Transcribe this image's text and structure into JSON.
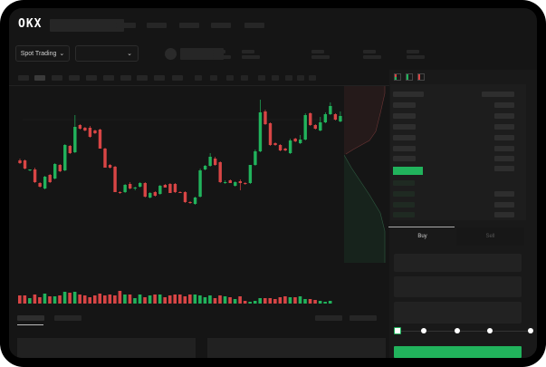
{
  "brand": "OKX",
  "market_selector": {
    "label": "Spot Trading"
  },
  "trade_tabs": [
    {
      "label": "Buy",
      "active": true
    },
    {
      "label": "Sell",
      "active": false
    }
  ],
  "order_slider": {
    "value_percent": 0,
    "stops": [
      0,
      25,
      50,
      75,
      100
    ]
  },
  "colors": {
    "up": "#21b35c",
    "down": "#d84545",
    "background": "#151515",
    "panel": "#1b1b1b"
  },
  "chart_data": {
    "type": "candlestick",
    "candles": [
      [
        118,
        120,
        114,
        115
      ],
      [
        118,
        119,
        108,
        109
      ],
      [
        107,
        108,
        106,
        108
      ],
      [
        108,
        110,
        93,
        94
      ],
      [
        93,
        94,
        88,
        89
      ],
      [
        87,
        101,
        86,
        100
      ],
      [
        102,
        103,
        93,
        94
      ],
      [
        98,
        115,
        97,
        114
      ],
      [
        113,
        114,
        105,
        106
      ],
      [
        107,
        136,
        106,
        135
      ],
      [
        134,
        135,
        125,
        126
      ],
      [
        127,
        168,
        126,
        155
      ],
      [
        157,
        158,
        152,
        153
      ],
      [
        154,
        155,
        150,
        151
      ],
      [
        154,
        156,
        143,
        144
      ],
      [
        151,
        152,
        147,
        148
      ],
      [
        152,
        153,
        131,
        131
      ],
      [
        131,
        132,
        110,
        110
      ],
      [
        113,
        114,
        109,
        110
      ],
      [
        111,
        112,
        83,
        83
      ],
      [
        83,
        84,
        81,
        82
      ],
      [
        83,
        92,
        82,
        91
      ],
      [
        92,
        94,
        86,
        87
      ],
      [
        87,
        89,
        85,
        88
      ],
      [
        89,
        94,
        88,
        93
      ],
      [
        93,
        94,
        77,
        78
      ],
      [
        77,
        83,
        76,
        82
      ],
      [
        83,
        84,
        78,
        79
      ],
      [
        81,
        91,
        80,
        90
      ],
      [
        91,
        92,
        88,
        88
      ],
      [
        92,
        93,
        82,
        82
      ],
      [
        92,
        93,
        82,
        83
      ],
      [
        83,
        84,
        82,
        82
      ],
      [
        83,
        84,
        71,
        72
      ],
      [
        72,
        73,
        70,
        71
      ],
      [
        70,
        78,
        69,
        77
      ],
      [
        78,
        109,
        77,
        107
      ],
      [
        108,
        113,
        107,
        112
      ],
      [
        112,
        126,
        111,
        122
      ],
      [
        120,
        122,
        112,
        113
      ],
      [
        116,
        117,
        93,
        94
      ],
      [
        93,
        96,
        92,
        94
      ],
      [
        96,
        97,
        93,
        93
      ],
      [
        90,
        95,
        89,
        94
      ],
      [
        95,
        97,
        85,
        93
      ],
      [
        93,
        94,
        91,
        92
      ],
      [
        93,
        113,
        92,
        113
      ],
      [
        113,
        130,
        112,
        128
      ],
      [
        128,
        185,
        127,
        171
      ],
      [
        172,
        174,
        157,
        158
      ],
      [
        159,
        160,
        134,
        135
      ],
      [
        137,
        138,
        134,
        135
      ],
      [
        135,
        136,
        128,
        129
      ],
      [
        131,
        132,
        128,
        129
      ],
      [
        126,
        142,
        125,
        140
      ],
      [
        142,
        143,
        138,
        139
      ],
      [
        137,
        146,
        136,
        141
      ],
      [
        141,
        170,
        140,
        168
      ],
      [
        170,
        171,
        156,
        157
      ],
      [
        157,
        158,
        152,
        153
      ],
      [
        151,
        166,
        150,
        160
      ],
      [
        160,
        171,
        159,
        169
      ],
      [
        169,
        182,
        168,
        178
      ],
      [
        169,
        170,
        162,
        163
      ],
      [
        161,
        172,
        160,
        167
      ]
    ],
    "volume": [
      9,
      9,
      6,
      10,
      7,
      11,
      8,
      8,
      9,
      13,
      12,
      13,
      10,
      9,
      7,
      9,
      11,
      9,
      10,
      9,
      14,
      10,
      10,
      6,
      10,
      7,
      9,
      10,
      10,
      7,
      9,
      10,
      10,
      8,
      10,
      10,
      9,
      7,
      9,
      6,
      9,
      8,
      7,
      5,
      8,
      3,
      2,
      3,
      6,
      6,
      6,
      5,
      7,
      8,
      7,
      7,
      8,
      5,
      5,
      4,
      3,
      2,
      3,
      0,
      0
    ],
    "depth": {
      "asks": "cumulative-red-area",
      "bids": "cumulative-green-area"
    }
  }
}
